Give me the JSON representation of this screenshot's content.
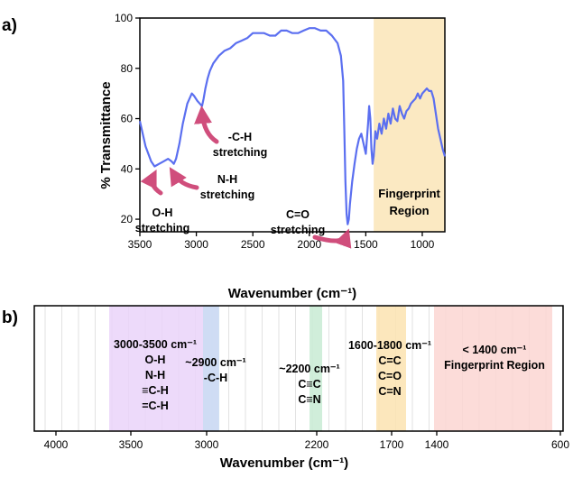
{
  "colors": {
    "line": "#5b6ff0",
    "arrow": "#cc3b6e",
    "fingerprint_band": "#fbe9c2",
    "purple_band": "#ead4f9",
    "blue_band": "#c9dcf2",
    "green_band": "#c8ebd4",
    "orange_band": "#fbe3b0",
    "red_band": "#fbd6d2"
  },
  "chart_data": [
    {
      "panel_label": "a)",
      "type": "line",
      "xlabel": "Wavenumber (cm⁻¹)",
      "ylabel": "% Transmittance",
      "xlim": [
        3500,
        800
      ],
      "ylim": [
        15,
        100
      ],
      "x_reversed": true,
      "x_ticks": [
        3500,
        3000,
        2500,
        2000,
        1500,
        1000
      ],
      "y_ticks": [
        20,
        40,
        60,
        80,
        100
      ],
      "x_tick_labels": [
        "3500",
        "3000",
        "2500",
        "2000",
        "1500",
        "1000"
      ],
      "y_tick_labels": [
        "20",
        "40",
        "60",
        "80",
        "100"
      ],
      "shaded_region": {
        "x_from": 1430,
        "x_to": 800,
        "label": [
          "Fingerprint",
          "Region"
        ]
      },
      "annotations": [
        {
          "lines": [
            "O-H",
            "stretching"
          ],
          "target": [
            3370,
            42
          ]
        },
        {
          "lines": [
            "N-H",
            "stretching"
          ],
          "target": [
            3200,
            43
          ]
        },
        {
          "lines": [
            "-C-H",
            "stretching"
          ],
          "target": [
            2940,
            65
          ]
        },
        {
          "lines": [
            "C=O",
            "stretching"
          ],
          "target": [
            1660,
            18
          ]
        }
      ],
      "series": [
        {
          "x": [
            3500,
            3450,
            3400,
            3370,
            3330,
            3290,
            3250,
            3220,
            3200,
            3180,
            3150,
            3120,
            3080,
            3040,
            3020,
            2990,
            2970,
            2950,
            2935,
            2920,
            2900,
            2880,
            2850,
            2800,
            2750,
            2700,
            2650,
            2600,
            2550,
            2500,
            2450,
            2400,
            2350,
            2300,
            2250,
            2200,
            2150,
            2100,
            2050,
            2000,
            1950,
            1900,
            1850,
            1800,
            1750,
            1720,
            1700,
            1690,
            1680,
            1670,
            1660,
            1650,
            1640,
            1620,
            1600,
            1580,
            1560,
            1540,
            1520,
            1500,
            1480,
            1470,
            1460,
            1450,
            1440,
            1430,
            1415,
            1400,
            1380,
            1360,
            1340,
            1320,
            1300,
            1280,
            1260,
            1240,
            1220,
            1200,
            1180,
            1160,
            1140,
            1120,
            1100,
            1080,
            1060,
            1040,
            1020,
            1000,
            980,
            960,
            940,
            920,
            900,
            880,
            860,
            840,
            820,
            800
          ],
          "y": [
            59,
            49,
            43,
            41,
            42,
            43,
            44,
            43,
            42,
            44,
            50,
            58,
            66,
            70,
            69,
            67,
            66,
            65,
            68,
            72,
            76,
            79,
            82,
            85,
            87,
            88,
            90,
            91,
            92,
            94,
            94,
            94,
            93,
            93,
            95,
            95,
            94,
            94,
            95,
            96,
            96,
            95,
            95,
            93,
            90,
            85,
            75,
            55,
            35,
            22,
            18,
            20,
            26,
            35,
            42,
            48,
            52,
            54,
            50,
            46,
            58,
            65,
            60,
            48,
            42,
            45,
            55,
            52,
            58,
            54,
            60,
            56,
            62,
            58,
            64,
            60,
            59,
            65,
            62,
            60,
            63,
            64,
            66,
            67,
            68,
            70,
            68,
            70,
            71,
            72,
            71,
            71,
            68,
            62,
            56,
            52,
            48,
            45
          ]
        }
      ]
    },
    {
      "panel_label": "b)",
      "type": "bar",
      "xlabel": "Wavenumber (cm⁻¹)",
      "x_tick_labels": [
        "4000",
        "3500",
        "3000",
        "2200",
        "1700",
        "1400",
        "600"
      ],
      "regions": [
        {
          "color_key": "purple_band",
          "label": [
            "3000-3500 cm⁻¹",
            "O-H",
            "N-H",
            "≡C-H",
            "=C-H"
          ]
        },
        {
          "color_key": "blue_band",
          "label": [
            "~2900 cm⁻¹",
            "-C-H"
          ]
        },
        {
          "color_key": "green_band",
          "label": [
            "~2200 cm⁻¹",
            "C≡C",
            "C≡N"
          ]
        },
        {
          "color_key": "orange_band",
          "label": [
            "1600-1800 cm⁻¹",
            "C=C",
            "C=O",
            "C=N"
          ]
        },
        {
          "color_key": "red_band",
          "label": [
            "< 1400 cm⁻¹",
            "Fingerprint Region"
          ]
        }
      ]
    }
  ]
}
